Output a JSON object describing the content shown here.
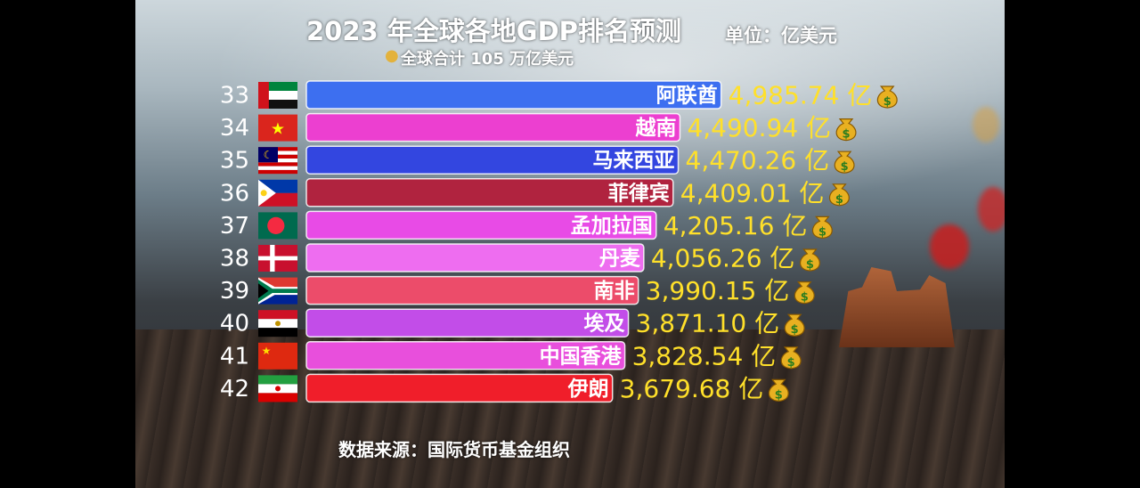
{
  "title": "2023 年全球各地GDP排名预测",
  "unit_label": "单位：亿美元",
  "subtitle": "全球合计 105 万亿美元",
  "source": "数据来源：国际货币基金组织",
  "value_suffix": "亿",
  "icons": {
    "value_badge": "money-bag-icon",
    "subtitle_badge": "hot-air-balloon-icon"
  },
  "chart_data": {
    "type": "bar",
    "orientation": "horizontal",
    "title": "2023 年全球各地GDP排名预测",
    "unit": "亿美元",
    "ranks": [
      33,
      34,
      35,
      36,
      37,
      38,
      39,
      40,
      41,
      42
    ],
    "categories": [
      "阿联酋",
      "越南",
      "马来西亚",
      "菲律宾",
      "孟加拉国",
      "丹麦",
      "南非",
      "埃及",
      "中国香港",
      "伊朗"
    ],
    "values": [
      4985.74,
      4490.94,
      4470.26,
      4409.01,
      4205.16,
      4056.26,
      3990.15,
      3871.1,
      3828.54,
      3679.68
    ],
    "value_labels": [
      "4,985.74",
      "4,490.94",
      "4,470.26",
      "4,409.01",
      "4,205.16",
      "4,056.26",
      "3,990.15",
      "3,871.10",
      "3,828.54",
      "3,679.68"
    ],
    "bar_colors": [
      "#3d6ff0",
      "#ec3fd0",
      "#3346e0",
      "#b0233f",
      "#e84be6",
      "#ee6df0",
      "#ec4c6a",
      "#c24de8",
      "#e84fdc",
      "#f01e2a"
    ],
    "flags": [
      "uae-flag",
      "vietnam-flag",
      "malaysia-flag",
      "philippines-flag",
      "bangladesh-flag",
      "denmark-flag",
      "south-africa-flag",
      "egypt-flag",
      "china-flag",
      "iran-flag"
    ]
  }
}
